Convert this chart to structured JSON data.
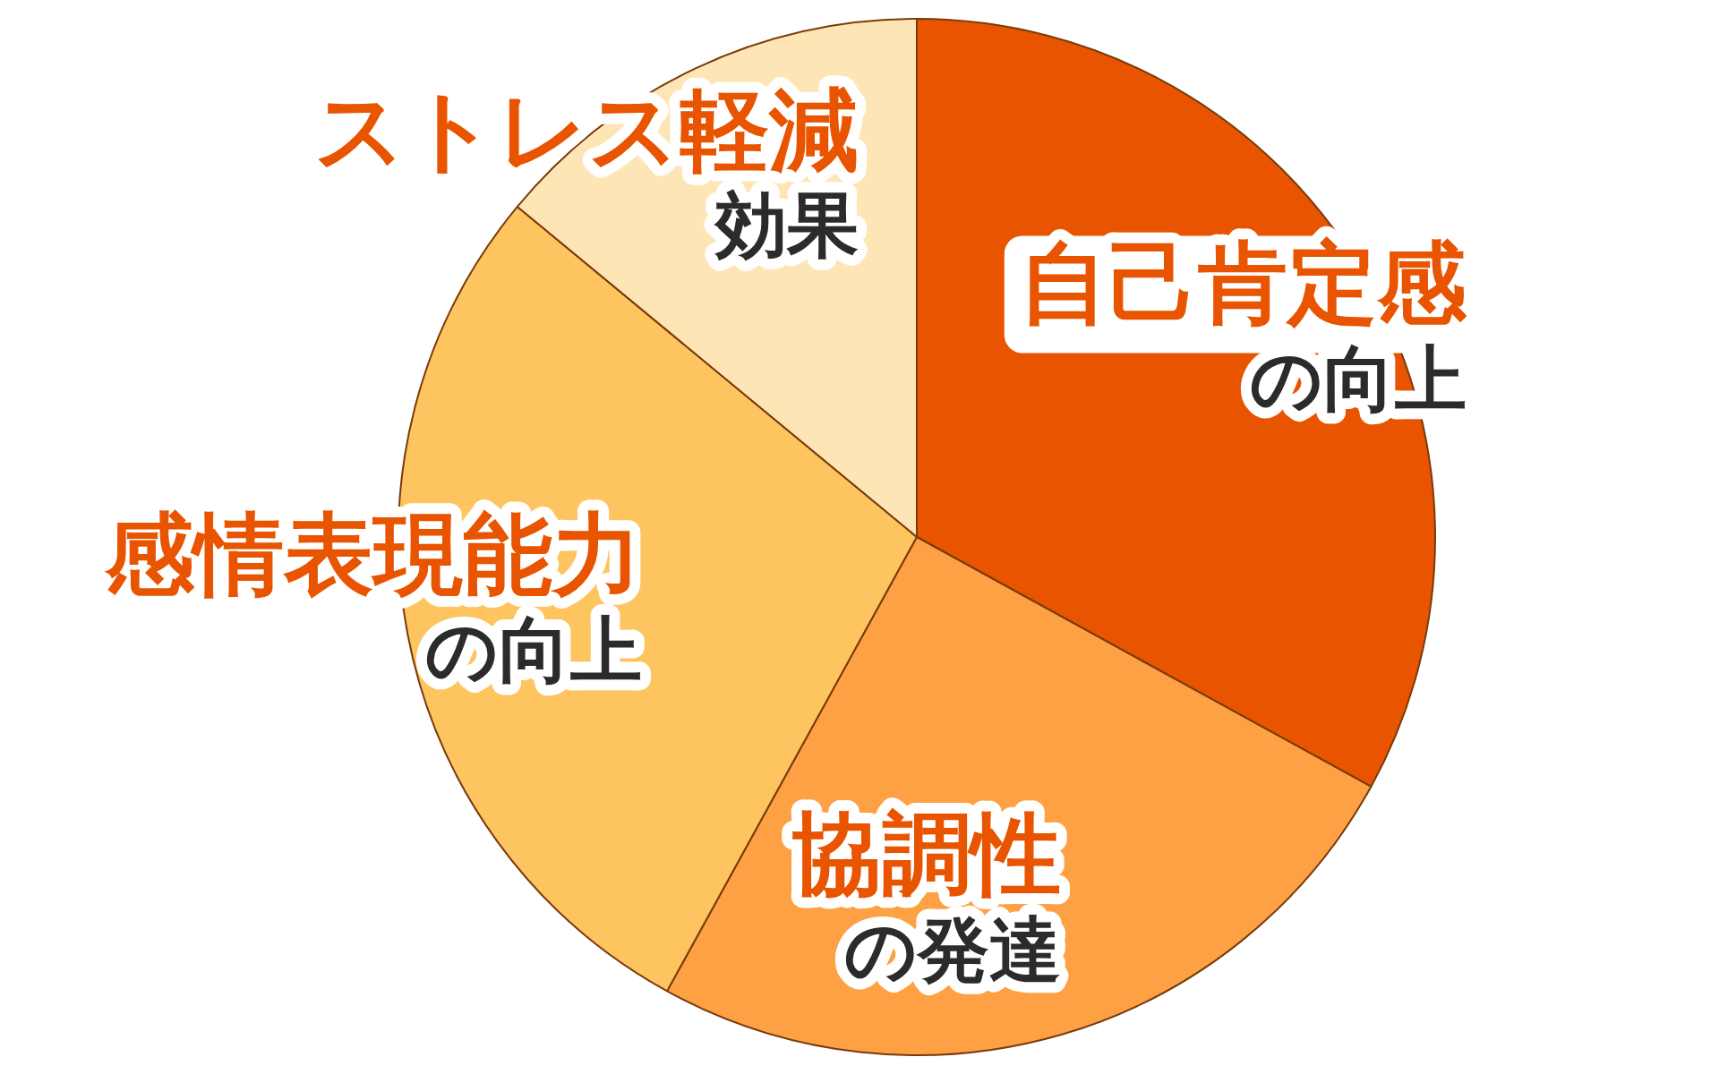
{
  "chart_data": {
    "type": "pie",
    "categories": [
      "自己肯定感",
      "協調性",
      "感情表現能力",
      "ストレス軽減"
    ],
    "annotations": [
      "の向上",
      "の発達",
      "の向上",
      "効果"
    ],
    "values": [
      33,
      25,
      28,
      14
    ],
    "colors": [
      "#e85400",
      "#fda144",
      "#fec460",
      "#fee5b5"
    ],
    "legend": false
  }
}
